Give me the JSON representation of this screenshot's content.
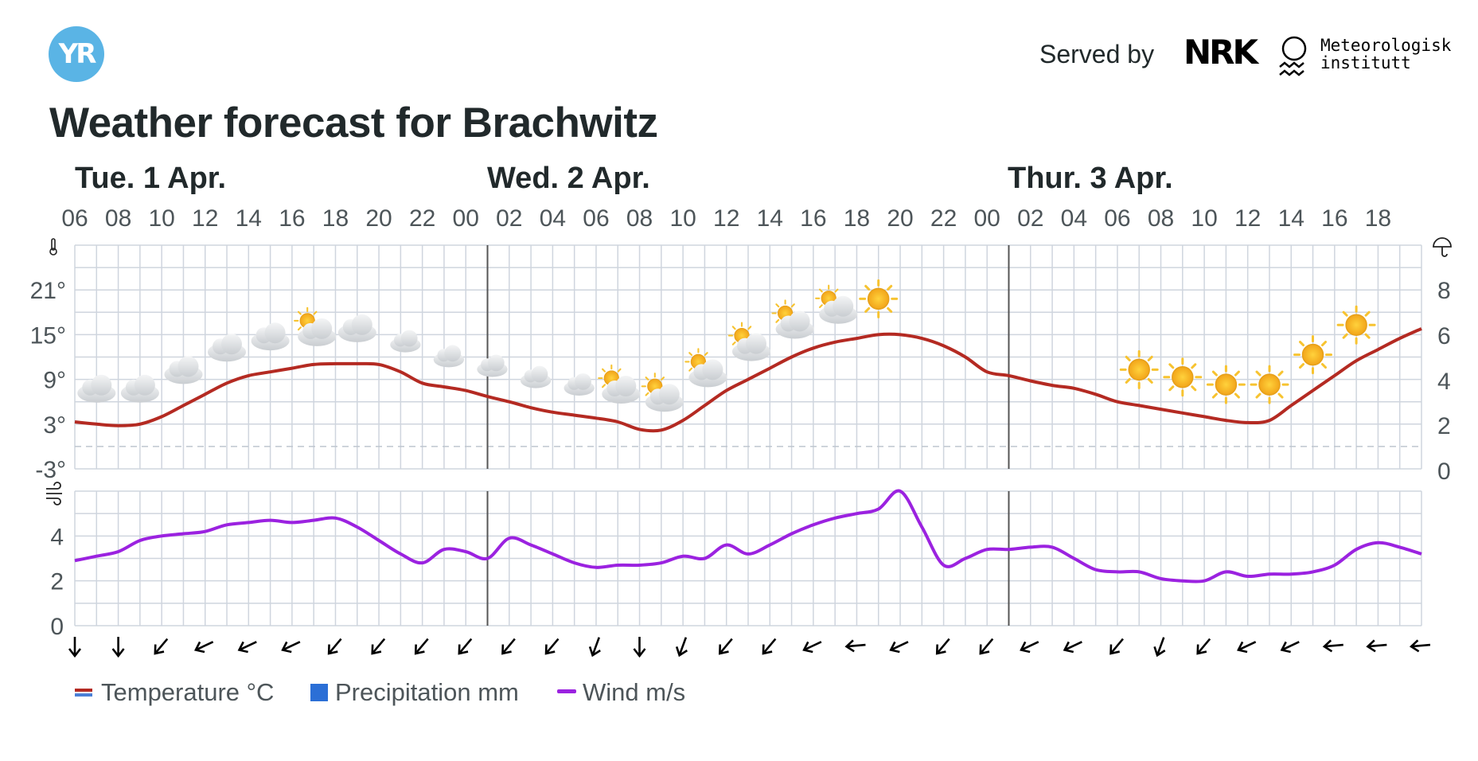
{
  "logo_text": "YR",
  "served_by_label": "Served by",
  "nrk_logo_text": "NRK",
  "met_logo_text": [
    "Meteorologisk",
    "institutt"
  ],
  "title": "Weather forecast for Brachwitz",
  "colors": {
    "temperature": "#b42a22",
    "wind": "#9b22e0",
    "precipitation": "#2b6fd6",
    "grid": "#cfd5de",
    "logo": "#5ab4e5"
  },
  "chart_data": {
    "type": "line",
    "days": [
      {
        "label": "Tue. 1 Apr.",
        "start_hour_offset": 0
      },
      {
        "label": "Wed. 2 Apr.",
        "start_hour_offset": 19
      },
      {
        "label": "Thur. 3 Apr.",
        "start_hour_offset": 43
      }
    ],
    "hour_ticks": [
      "06",
      "08",
      "10",
      "12",
      "14",
      "16",
      "18",
      "20",
      "22",
      "00",
      "02",
      "04",
      "06",
      "08",
      "10",
      "12",
      "14",
      "16",
      "18",
      "20",
      "22",
      "00",
      "02",
      "04",
      "06",
      "08",
      "10",
      "12",
      "14",
      "16",
      "18"
    ],
    "x_hours_from_start": [
      0,
      1,
      2,
      3,
      4,
      5,
      6,
      7,
      8,
      9,
      10,
      11,
      12,
      13,
      14,
      15,
      16,
      17,
      18,
      19,
      20,
      21,
      22,
      23,
      24,
      25,
      26,
      27,
      28,
      29,
      30,
      31,
      32,
      33,
      34,
      35,
      36,
      37,
      38,
      39,
      40,
      41,
      42,
      43,
      44,
      45,
      46,
      47,
      48,
      49,
      50,
      51,
      52,
      53,
      54,
      55,
      56,
      57,
      58,
      59,
      60,
      61,
      62
    ],
    "temperature": {
      "name": "Temperature °C",
      "axis_labels": [
        "21°",
        "15°",
        "9°",
        "3°",
        "-3°"
      ],
      "ylim": [
        -3,
        27
      ],
      "values": [
        3.3,
        3.0,
        2.8,
        3.0,
        4.0,
        5.5,
        7.0,
        8.5,
        9.5,
        10.0,
        10.5,
        11.0,
        11.1,
        11.1,
        11.0,
        10.0,
        8.5,
        8.0,
        7.5,
        6.7,
        6.0,
        5.2,
        4.6,
        4.2,
        3.8,
        3.3,
        2.3,
        2.2,
        3.5,
        5.5,
        7.5,
        9.0,
        10.5,
        12.0,
        13.2,
        14.0,
        14.5,
        15.0,
        15.0,
        14.5,
        13.5,
        12.0,
        10.0,
        9.5,
        8.8,
        8.2,
        7.8,
        7.0,
        6.0,
        5.5,
        5.0,
        4.5,
        4.0,
        3.5,
        3.2,
        3.5,
        5.5,
        7.5,
        9.5,
        11.5,
        13.0,
        14.5,
        15.8
      ]
    },
    "precipitation": {
      "name": "Precipitation mm",
      "axis_labels": [
        "8",
        "6",
        "4",
        "2",
        "0"
      ],
      "ylim": [
        0,
        10
      ]
    },
    "wind": {
      "name": "Wind m/s",
      "axis_labels": [
        "4",
        "2",
        "0"
      ],
      "ylim": [
        0,
        6
      ],
      "values": [
        2.9,
        3.1,
        3.3,
        3.8,
        4.0,
        4.1,
        4.2,
        4.5,
        4.6,
        4.7,
        4.6,
        4.7,
        4.8,
        4.4,
        3.8,
        3.2,
        2.8,
        3.4,
        3.3,
        3.0,
        3.9,
        3.6,
        3.2,
        2.8,
        2.6,
        2.7,
        2.7,
        2.8,
        3.1,
        3.0,
        3.6,
        3.2,
        3.6,
        4.1,
        4.5,
        4.8,
        5.0,
        5.2,
        6.0,
        4.4,
        2.7,
        3.0,
        3.4,
        3.4,
        3.5,
        3.5,
        3.0,
        2.5,
        2.4,
        2.4,
        2.1,
        2.0,
        2.0,
        2.4,
        2.2,
        2.3,
        2.3,
        2.4,
        2.7,
        3.4,
        3.7,
        3.5,
        3.2
      ]
    },
    "weather_symbols": [
      "cloud-icon",
      "cloud-icon",
      "cloud-icon",
      "cloud-icon",
      "cloud-icon",
      "partly-sunny-icon",
      "cloud-icon",
      "moon-cloud-icon",
      "moon-cloud-icon",
      "moon-cloud-icon",
      "moon-cloud-icon",
      "moon-cloud-icon",
      "partly-sunny-icon",
      "partly-sunny-icon",
      "partly-sunny-icon",
      "partly-sunny-icon",
      "partly-sunny-icon",
      "partly-sunny-icon",
      "sun-icon",
      "moon-icon",
      "moon-icon",
      "moon-icon",
      "moon-icon",
      "moon-icon",
      "sun-icon",
      "sun-icon",
      "sun-icon",
      "sun-icon",
      "sun-icon",
      "sun-icon"
    ],
    "wind_direction_symbols": [
      "arrow-down-icon",
      "arrow-down-icon",
      "arrow-sw-icon",
      "arrow-wsw-icon",
      "arrow-wsw-icon",
      "arrow-wsw-icon",
      "arrow-sw-icon",
      "arrow-sw-icon",
      "arrow-sw-icon",
      "arrow-sw-icon",
      "arrow-sw-icon",
      "arrow-sw-icon",
      "arrow-ssw-icon",
      "arrow-down-icon",
      "arrow-ssw-icon",
      "arrow-sw-icon",
      "arrow-sw-icon",
      "arrow-wsw-icon",
      "arrow-west-icon",
      "arrow-wsw-icon",
      "arrow-sw-icon",
      "arrow-sw-icon",
      "arrow-wsw-icon",
      "arrow-wsw-icon",
      "arrow-sw-icon",
      "arrow-ssw-icon",
      "arrow-sw-icon",
      "arrow-wsw-icon",
      "arrow-wsw-icon",
      "arrow-west-icon",
      "arrow-west-icon",
      "arrow-west-icon"
    ],
    "legend": [
      "Temperature °C",
      "Precipitation mm",
      "Wind m/s"
    ],
    "legend_position": "bottom-left",
    "grid": true
  }
}
